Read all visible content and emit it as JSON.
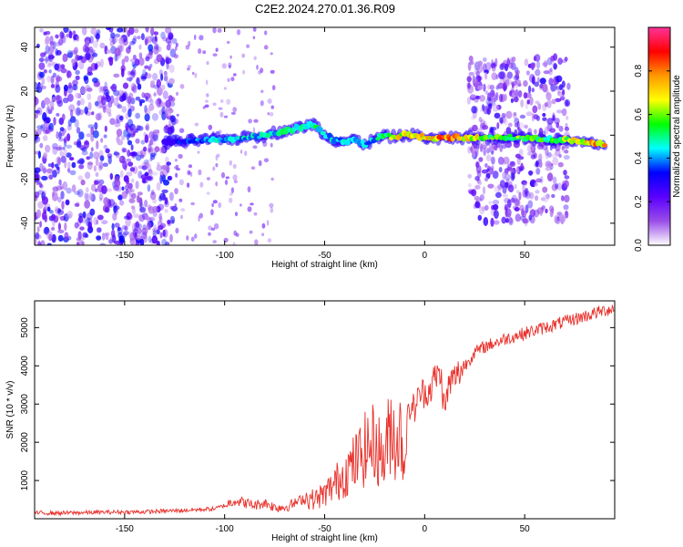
{
  "figure": {
    "title": "C2E2.2024.270.01.36.R09"
  },
  "chart_data": [
    {
      "type": "heatmap",
      "title": "C2E2.2024.270.01.36.R09",
      "xlabel": "Height of straight line (km)",
      "ylabel": "Frequency (Hz)",
      "xlim": [
        -195,
        95
      ],
      "ylim": [
        -50,
        49
      ],
      "xticks": [
        -150,
        -100,
        -50,
        0,
        50
      ],
      "yticks": [
        -40,
        -20,
        0,
        20,
        40
      ],
      "colorbar": {
        "label": "Normalized spectral amplitude",
        "range": [
          0,
          1
        ],
        "ticks": [
          0.0,
          0.2,
          0.4,
          0.6,
          0.8
        ],
        "tick_labels": [
          "0.0",
          "0.2",
          "0.4",
          "0.6",
          "0.8"
        ],
        "colormap": [
          "#ffffff",
          "#9a4de8",
          "#5a00ff",
          "#0000ff",
          "#00ffff",
          "#00ff00",
          "#ffff00",
          "#ff9900",
          "#ff0000",
          "#ff3399"
        ]
      },
      "signal_track": {
        "x": [
          -130,
          -120,
          -110,
          -100,
          -90,
          -80,
          -70,
          -60,
          -55,
          -50,
          -45,
          -40,
          -35,
          -30,
          -25,
          -20,
          -15,
          -10,
          -5,
          0,
          5,
          10,
          20,
          30,
          40,
          50,
          60,
          70,
          80,
          90
        ],
        "frequency": [
          -3,
          -3,
          -2,
          -2,
          -1,
          0,
          2,
          4,
          5,
          0,
          -2,
          -3,
          -2,
          -4,
          -2,
          0,
          -1,
          0,
          0,
          -1,
          -2,
          -1,
          -1,
          -1,
          -1,
          -1,
          -2,
          -2,
          -3,
          -4
        ],
        "amplitude": [
          0.3,
          0.4,
          0.45,
          0.5,
          0.5,
          0.5,
          0.55,
          0.55,
          0.6,
          0.45,
          0.5,
          0.5,
          0.45,
          0.5,
          0.5,
          0.6,
          0.75,
          0.8,
          0.85,
          0.8,
          0.85,
          0.9,
          0.85,
          0.7,
          0.65,
          0.65,
          0.6,
          0.7,
          0.8,
          0.9
        ]
      },
      "bursts": [
        {
          "x_range": [
            -195,
            -125
          ],
          "f_range": [
            -50,
            49
          ],
          "amplitude": 0.35
        },
        {
          "x_range": [
            22,
            72
          ],
          "f_range": [
            -40,
            36
          ],
          "amplitude": 0.3
        }
      ]
    },
    {
      "type": "line",
      "xlabel": "Height of straight line (km)",
      "ylabel": "SNR (10 * v/v)",
      "xlim": [
        -195,
        95
      ],
      "ylim": [
        0,
        5700
      ],
      "xticks": [
        -150,
        -100,
        -50,
        0,
        50
      ],
      "yticks": [
        1000,
        2000,
        3000,
        4000,
        5000
      ],
      "color": "#e8302a",
      "series": [
        {
          "x": [
            -195,
            -180,
            -160,
            -140,
            -120,
            -105,
            -100,
            -95,
            -90,
            -85,
            -80,
            -75,
            -70,
            -65,
            -60,
            -55,
            -50,
            -45,
            -40,
            -35,
            -30,
            -25,
            -20,
            -17,
            -15,
            -12,
            -10,
            -8,
            -5,
            -2,
            0,
            3,
            5,
            8,
            10,
            12,
            15,
            20,
            25,
            30,
            40,
            50,
            60,
            70,
            80,
            90,
            95
          ],
          "values": [
            150,
            150,
            170,
            180,
            220,
            260,
            350,
            480,
            420,
            350,
            420,
            300,
            300,
            400,
            550,
            500,
            650,
            900,
            1200,
            1450,
            1800,
            2000,
            1500,
            2500,
            2100,
            2200,
            1500,
            2900,
            2900,
            3300,
            3300,
            3400,
            3700,
            3800,
            2800,
            3500,
            3700,
            4000,
            4350,
            4500,
            4700,
            4850,
            5000,
            5150,
            5300,
            5450,
            5500
          ]
        }
      ]
    }
  ]
}
